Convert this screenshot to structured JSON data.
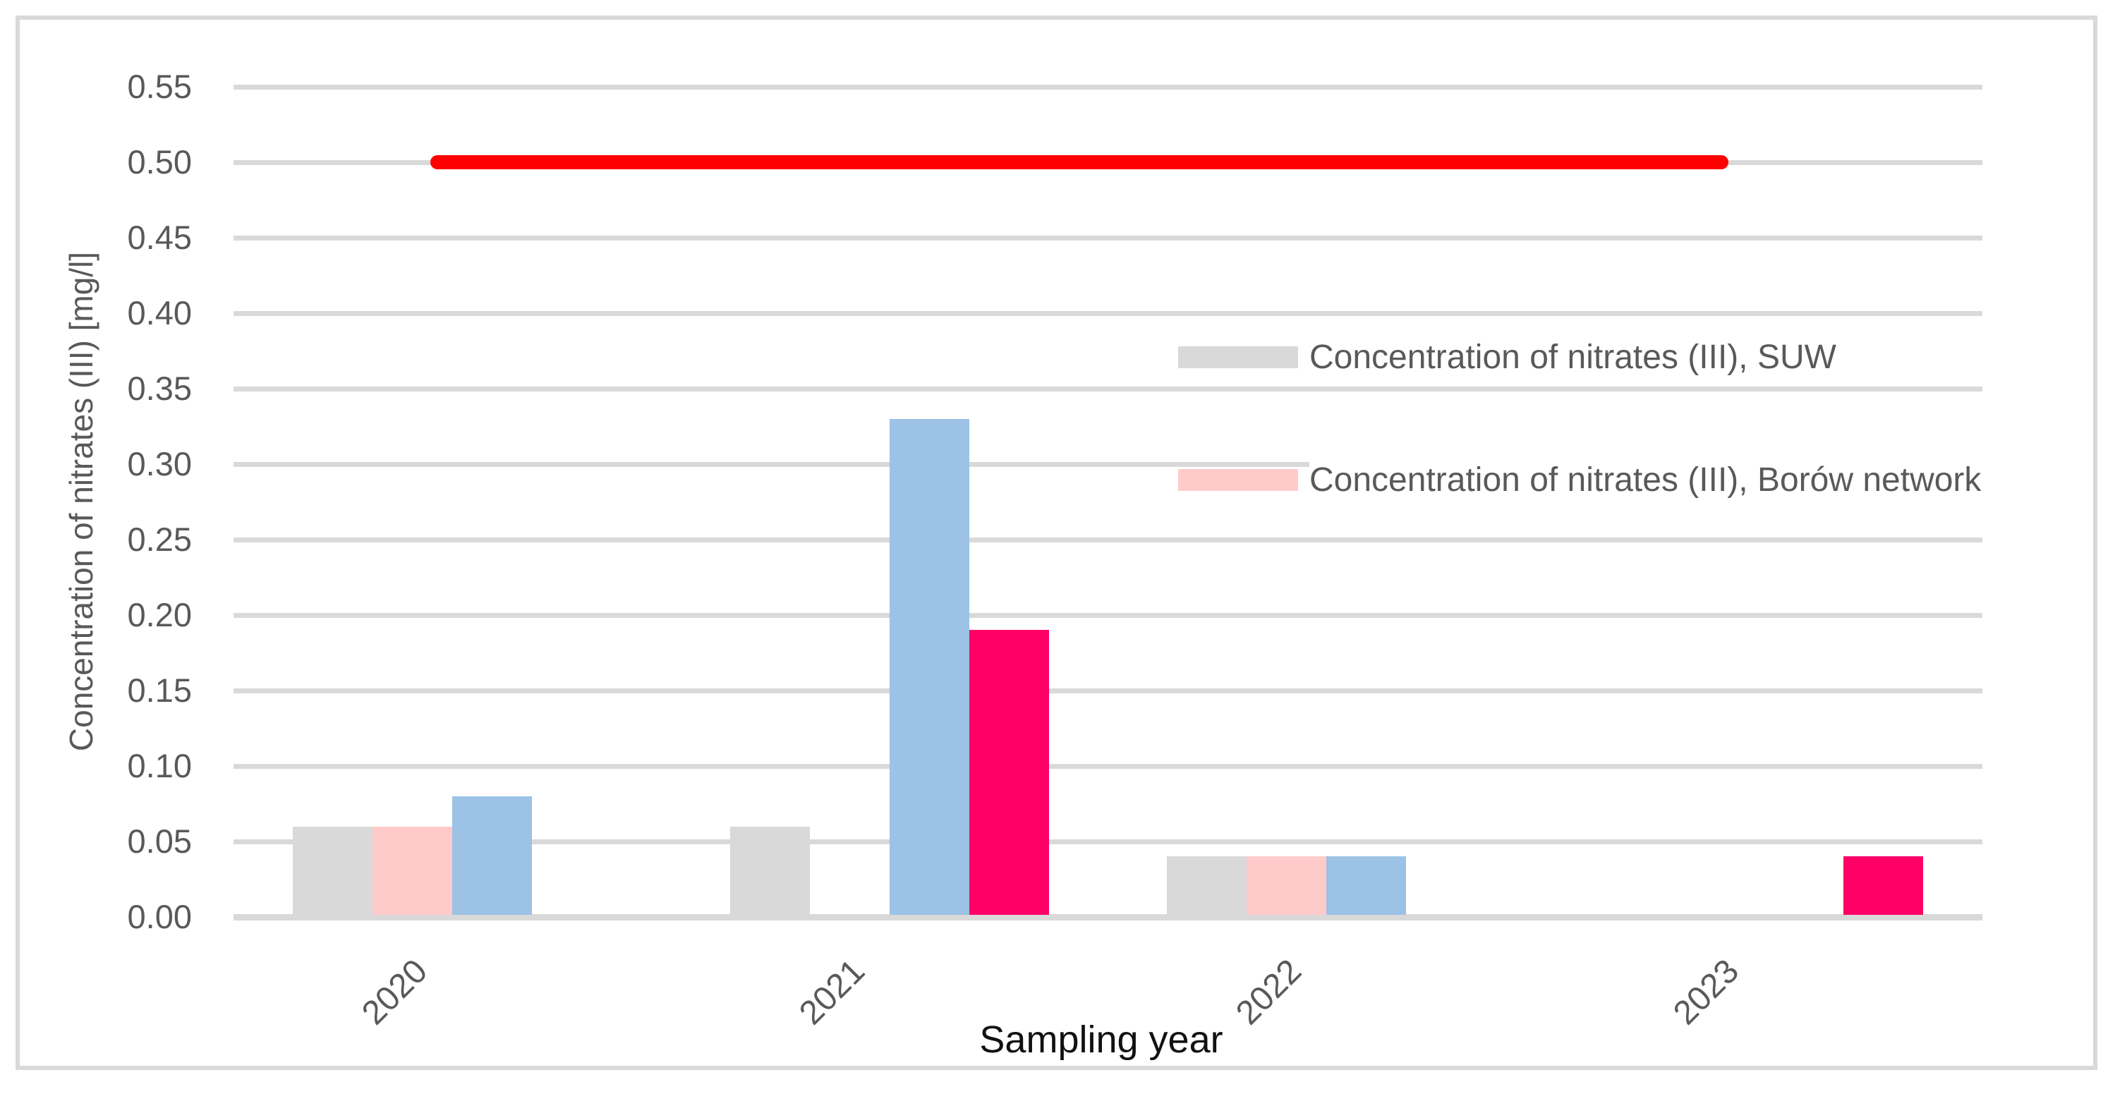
{
  "chart_data": {
    "type": "bar",
    "title": "",
    "categories": [
      "2020",
      "2021",
      "2022",
      "2023"
    ],
    "series": [
      {
        "name": "Concentration of nitrates (III), SUW",
        "color": "#d9d9d9",
        "in_legend": true,
        "values": [
          0.06,
          0.06,
          0.04,
          null
        ]
      },
      {
        "name": "Concentration of nitrates (III), Borów network",
        "color": "#ffcbca",
        "in_legend": true,
        "values": [
          0.06,
          null,
          0.04,
          null
        ]
      },
      {
        "name": "",
        "color": "#9cc2e5",
        "in_legend": false,
        "values": [
          0.08,
          0.33,
          0.04,
          null
        ]
      },
      {
        "name": "",
        "color": "#ff0066",
        "in_legend": false,
        "values": [
          null,
          0.19,
          null,
          0.04
        ]
      }
    ],
    "limit_line": {
      "value": 0.5,
      "color": "#fe0000"
    },
    "xlabel": "Sampling year",
    "ylabel": "Concentration of nitrates (III) [mg/l]",
    "ylim": [
      0,
      0.55
    ],
    "y_tick_step": 0.05,
    "y_ticks": [
      "0.00",
      "0.05",
      "0.10",
      "0.15",
      "0.20",
      "0.25",
      "0.30",
      "0.35",
      "0.40",
      "0.45",
      "0.50",
      "0.55"
    ],
    "grid": true,
    "legend_position": "right-center",
    "colors": {
      "gridline": "#d9d9d9",
      "tick_text": "#595959",
      "x_title_text": "#111111",
      "frame_border": "#d9d9d9"
    }
  }
}
